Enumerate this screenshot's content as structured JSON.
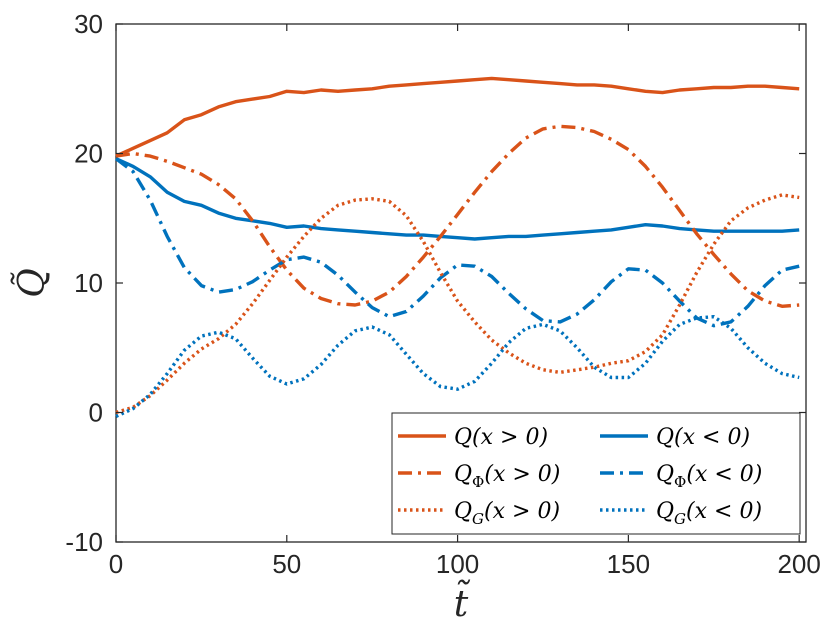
{
  "chart_data": {
    "type": "line",
    "xlabel": "t̃",
    "ylabel": "Q̃",
    "xlim": [
      0,
      202
    ],
    "ylim": [
      -10,
      30
    ],
    "xticks": [
      "0",
      "50",
      "100",
      "150",
      "200"
    ],
    "yticks": [
      "-10",
      "0",
      "10",
      "20",
      "30"
    ],
    "legend_position": "bottom-right",
    "grid": false,
    "colors": {
      "orange": "#D95319",
      "blue": "#0072BD"
    },
    "series": [
      {
        "name": "Q(x > 0)",
        "label_main": "Q",
        "label_sub": "",
        "label_arg": "(x > 0)",
        "color": "#D95319",
        "style": "solid",
        "x": [
          0,
          5,
          10,
          15,
          20,
          25,
          30,
          35,
          40,
          45,
          50,
          55,
          60,
          65,
          70,
          75,
          80,
          85,
          90,
          95,
          100,
          105,
          110,
          115,
          120,
          125,
          130,
          135,
          140,
          145,
          150,
          155,
          160,
          165,
          170,
          175,
          180,
          185,
          190,
          195,
          200
        ],
        "y": [
          19.8,
          20.4,
          21.0,
          21.6,
          22.6,
          23.0,
          23.6,
          24.0,
          24.2,
          24.4,
          24.8,
          24.7,
          24.9,
          24.8,
          24.9,
          25.0,
          25.2,
          25.3,
          25.4,
          25.5,
          25.6,
          25.7,
          25.8,
          25.7,
          25.6,
          25.5,
          25.4,
          25.3,
          25.3,
          25.2,
          25.0,
          24.8,
          24.7,
          24.9,
          25.0,
          25.1,
          25.1,
          25.2,
          25.2,
          25.1,
          25.0
        ]
      },
      {
        "name": "Q(x < 0)",
        "label_main": "Q",
        "label_sub": "",
        "label_arg": "(x < 0)",
        "color": "#0072BD",
        "style": "solid",
        "x": [
          0,
          5,
          10,
          15,
          20,
          25,
          30,
          35,
          40,
          45,
          50,
          55,
          60,
          65,
          70,
          75,
          80,
          85,
          90,
          95,
          100,
          105,
          110,
          115,
          120,
          125,
          130,
          135,
          140,
          145,
          150,
          155,
          160,
          165,
          170,
          175,
          180,
          185,
          190,
          195,
          200
        ],
        "y": [
          19.6,
          19.0,
          18.2,
          17.0,
          16.3,
          16.0,
          15.4,
          15.0,
          14.8,
          14.6,
          14.3,
          14.4,
          14.2,
          14.1,
          14.0,
          13.9,
          13.8,
          13.7,
          13.7,
          13.6,
          13.5,
          13.4,
          13.5,
          13.6,
          13.6,
          13.7,
          13.8,
          13.9,
          14.0,
          14.1,
          14.3,
          14.5,
          14.4,
          14.2,
          14.1,
          14.0,
          14.0,
          14.0,
          14.0,
          14.0,
          14.1
        ]
      },
      {
        "name": "QΦ(x > 0)",
        "label_main": "Q",
        "label_sub": "Φ",
        "label_arg": "(x > 0)",
        "color": "#D95319",
        "style": "dashdot",
        "x": [
          0,
          5,
          10,
          15,
          20,
          25,
          30,
          35,
          40,
          45,
          50,
          55,
          60,
          65,
          70,
          75,
          80,
          85,
          90,
          95,
          100,
          105,
          110,
          115,
          120,
          125,
          130,
          135,
          140,
          145,
          150,
          155,
          160,
          165,
          170,
          175,
          180,
          185,
          190,
          195,
          200
        ],
        "y": [
          19.8,
          20.0,
          19.8,
          19.4,
          18.9,
          18.4,
          17.6,
          16.5,
          14.8,
          12.8,
          11.0,
          9.6,
          8.8,
          8.4,
          8.3,
          8.6,
          9.3,
          10.5,
          12.0,
          13.6,
          15.3,
          17.0,
          18.6,
          20.0,
          21.2,
          21.9,
          22.1,
          22.0,
          21.7,
          21.1,
          20.3,
          19.0,
          17.4,
          15.6,
          13.8,
          12.2,
          10.7,
          9.4,
          8.6,
          8.2,
          8.3
        ]
      },
      {
        "name": "QΦ(x < 0)",
        "label_main": "Q",
        "label_sub": "Φ",
        "label_arg": "(x < 0)",
        "color": "#0072BD",
        "style": "dashdot",
        "x": [
          0,
          5,
          10,
          15,
          20,
          25,
          30,
          35,
          40,
          45,
          50,
          55,
          60,
          65,
          70,
          75,
          80,
          85,
          90,
          95,
          100,
          105,
          110,
          115,
          120,
          125,
          130,
          135,
          140,
          145,
          150,
          155,
          160,
          165,
          170,
          175,
          180,
          185,
          190,
          195,
          200
        ],
        "y": [
          19.6,
          18.6,
          16.4,
          13.6,
          11.2,
          9.8,
          9.3,
          9.5,
          10.1,
          11.0,
          11.8,
          12.0,
          11.6,
          10.6,
          9.3,
          8.1,
          7.4,
          7.8,
          9.0,
          10.4,
          11.4,
          11.3,
          10.5,
          9.2,
          8.0,
          7.1,
          7.0,
          7.6,
          8.7,
          10.1,
          11.1,
          11.0,
          10.0,
          8.6,
          7.3,
          6.7,
          7.0,
          8.2,
          9.8,
          11.0,
          11.3
        ]
      },
      {
        "name": "QG(x > 0)",
        "label_main": "Q",
        "label_sub": "G",
        "label_arg": "(x > 0)",
        "color": "#D95319",
        "style": "dotted",
        "x": [
          0,
          5,
          10,
          15,
          20,
          25,
          30,
          35,
          40,
          45,
          50,
          55,
          60,
          65,
          70,
          75,
          80,
          85,
          90,
          95,
          100,
          105,
          110,
          115,
          120,
          125,
          130,
          135,
          140,
          145,
          150,
          155,
          160,
          165,
          170,
          175,
          180,
          185,
          190,
          195,
          200
        ],
        "y": [
          0.0,
          0.4,
          1.3,
          2.5,
          3.8,
          4.9,
          5.7,
          6.8,
          8.4,
          10.2,
          12.0,
          13.6,
          15.0,
          16.0,
          16.4,
          16.5,
          16.3,
          15.2,
          13.2,
          10.8,
          8.6,
          7.0,
          5.6,
          4.6,
          3.8,
          3.3,
          3.1,
          3.3,
          3.5,
          3.8,
          4.0,
          4.7,
          6.0,
          8.3,
          10.8,
          13.0,
          14.8,
          15.8,
          16.4,
          16.8,
          16.6
        ]
      },
      {
        "name": "QG(x < 0)",
        "label_main": "Q",
        "label_sub": "G",
        "label_arg": "(x < 0)",
        "color": "#0072BD",
        "style": "dotted",
        "x": [
          0,
          5,
          10,
          15,
          20,
          25,
          30,
          35,
          40,
          45,
          50,
          55,
          60,
          65,
          70,
          75,
          80,
          85,
          90,
          95,
          100,
          105,
          110,
          115,
          120,
          125,
          130,
          135,
          140,
          145,
          150,
          155,
          160,
          165,
          170,
          175,
          180,
          185,
          190,
          195,
          200
        ],
        "y": [
          -0.3,
          0.3,
          1.4,
          3.0,
          4.8,
          5.9,
          6.2,
          5.7,
          4.2,
          2.8,
          2.2,
          2.6,
          3.7,
          5.2,
          6.3,
          6.6,
          6.0,
          4.5,
          3.0,
          2.0,
          1.8,
          2.4,
          3.8,
          5.4,
          6.5,
          6.8,
          6.3,
          5.0,
          3.5,
          2.7,
          2.7,
          3.8,
          5.5,
          6.8,
          7.3,
          7.4,
          6.5,
          5.0,
          3.8,
          3.0,
          2.7
        ]
      }
    ]
  }
}
